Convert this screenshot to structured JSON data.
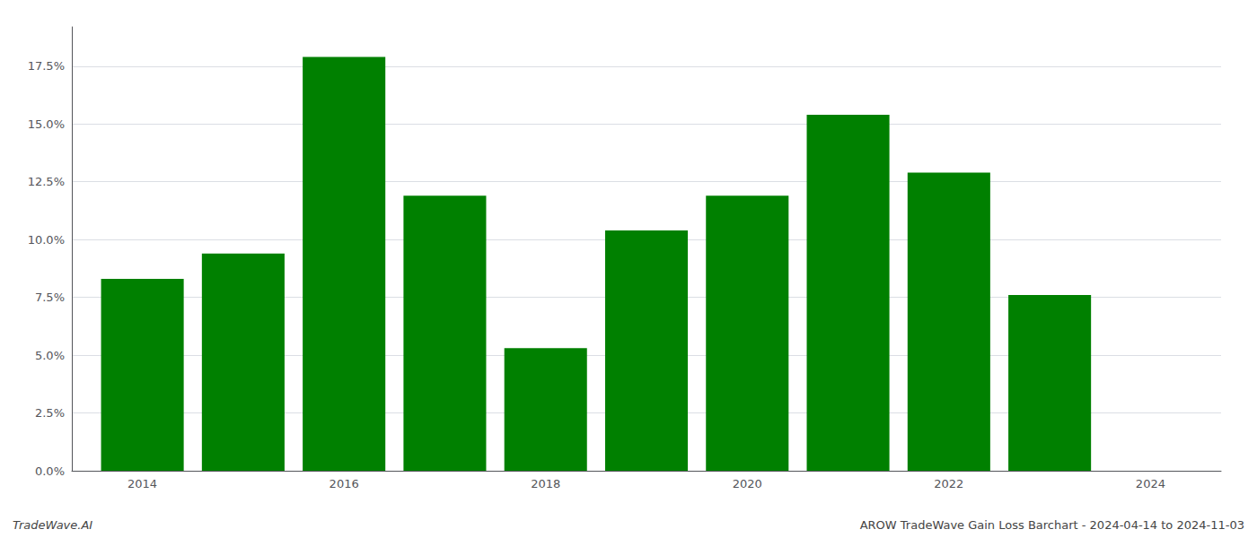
{
  "chart_data": {
    "type": "bar",
    "x": [
      2014,
      2015,
      2016,
      2017,
      2018,
      2019,
      2020,
      2021,
      2022,
      2023
    ],
    "values": [
      0.083,
      0.094,
      0.179,
      0.119,
      0.053,
      0.104,
      0.119,
      0.154,
      0.129,
      0.076
    ],
    "color": "#008000",
    "xlim": [
      2013.3,
      2024.7
    ],
    "xticks": [
      2014,
      2016,
      2018,
      2020,
      2022,
      2024
    ],
    "ylim": [
      0,
      0.192
    ],
    "yticks": [
      {
        "value": 0.0,
        "label": "0.0%"
      },
      {
        "value": 0.025,
        "label": "2.5%"
      },
      {
        "value": 0.05,
        "label": "5.0%"
      },
      {
        "value": 0.075,
        "label": "7.5%"
      },
      {
        "value": 0.1,
        "label": "10.0%"
      },
      {
        "value": 0.125,
        "label": "12.5%"
      },
      {
        "value": 0.15,
        "label": "15.0%"
      },
      {
        "value": 0.175,
        "label": "17.5%"
      }
    ],
    "grid": true,
    "annotations": [
      "TradeWave.AI",
      "AROW TradeWave Gain Loss Barchart - 2024-04-14 to 2024-11-03"
    ]
  }
}
